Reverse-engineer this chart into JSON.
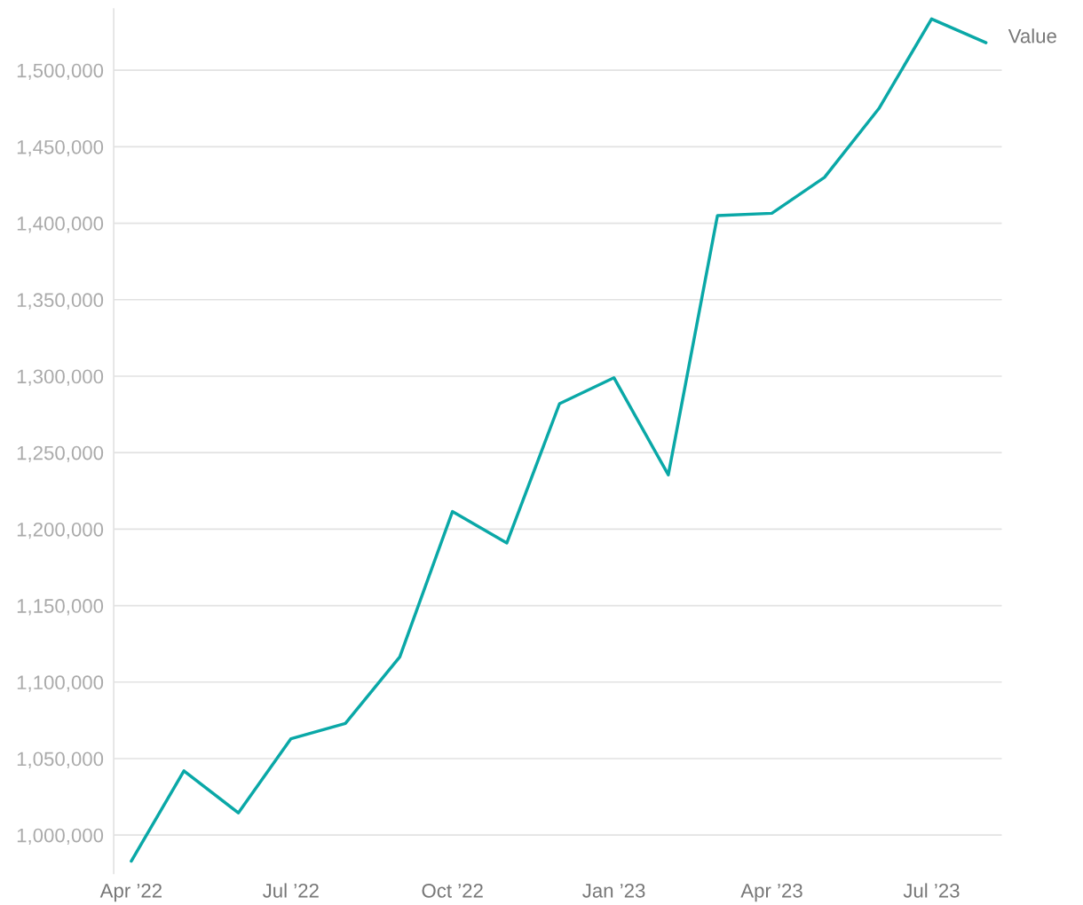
{
  "chart_data": {
    "type": "line",
    "x": [
      "2022-04-01",
      "2022-05-01",
      "2022-06-01",
      "2022-07-01",
      "2022-08-01",
      "2022-09-01",
      "2022-10-01",
      "2022-11-01",
      "2022-12-01",
      "2023-01-01",
      "2023-02-01",
      "2023-03-01",
      "2023-04-01",
      "2023-05-01",
      "2023-06-01",
      "2023-07-01",
      "2023-08-01"
    ],
    "series": [
      {
        "name": "Value",
        "color": "#0aa8a7",
        "values": [
          983000,
          1042000,
          1014500,
          1063000,
          1073000,
          1116500,
          1211500,
          1191000,
          1282000,
          1299000,
          1235500,
          1405000,
          1406500,
          1430000,
          1475000,
          1533500,
          1518000
        ]
      }
    ],
    "xlim": [
      "2022-03-22",
      "2023-08-10"
    ],
    "xticks": [
      {
        "value": "2022-04-01",
        "label": "Apr ’22"
      },
      {
        "value": "2022-07-01",
        "label": "Jul ’22"
      },
      {
        "value": "2022-10-01",
        "label": "Oct ’22"
      },
      {
        "value": "2023-01-01",
        "label": "Jan ’23"
      },
      {
        "value": "2023-04-01",
        "label": "Apr ’23"
      },
      {
        "value": "2023-07-01",
        "label": "Jul ’23"
      }
    ],
    "ylim": [
      975000,
      1540000
    ],
    "yticks": [
      {
        "value": 1000000,
        "label": "1,000,000"
      },
      {
        "value": 1050000,
        "label": "1,050,000"
      },
      {
        "value": 1100000,
        "label": "1,100,000"
      },
      {
        "value": 1150000,
        "label": "1,150,000"
      },
      {
        "value": 1200000,
        "label": "1,200,000"
      },
      {
        "value": 1250000,
        "label": "1,250,000"
      },
      {
        "value": 1300000,
        "label": "1,300,000"
      },
      {
        "value": 1350000,
        "label": "1,350,000"
      },
      {
        "value": 1400000,
        "label": "1,400,000"
      },
      {
        "value": 1450000,
        "label": "1,450,000"
      },
      {
        "value": 1500000,
        "label": "1,500,000"
      }
    ],
    "grid": "y",
    "legend": false,
    "line_style": "solid",
    "marker": "none"
  }
}
